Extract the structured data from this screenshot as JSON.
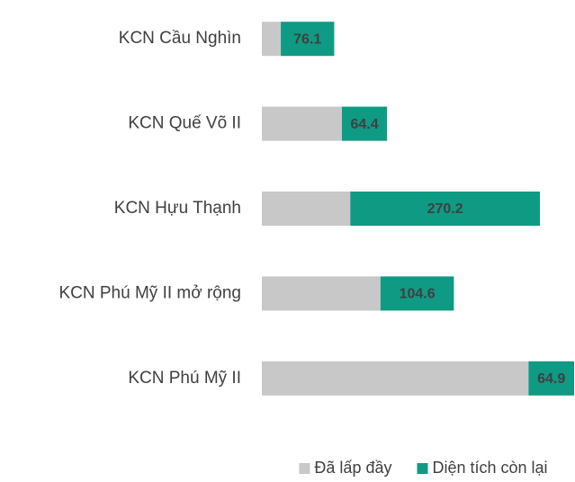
{
  "chart_data": {
    "type": "bar",
    "orientation": "horizontal",
    "stacked": true,
    "categories": [
      "KCN Cầu Nghìn",
      "KCN Quế Võ II",
      "KCN Hựu Thạnh",
      "KCN Phú Mỹ II mở rộng",
      "KCN Phú Mỹ II"
    ],
    "series": [
      {
        "name": "Đã lấp đầy",
        "color": "#c8c8c8",
        "values": [
          27,
          114,
          126,
          169,
          380
        ]
      },
      {
        "name": "Diện tích còn lại",
        "color": "#0f9a84",
        "values": [
          76.1,
          64.4,
          270.2,
          104.6,
          64.9
        ]
      }
    ],
    "legend": "bottom"
  }
}
